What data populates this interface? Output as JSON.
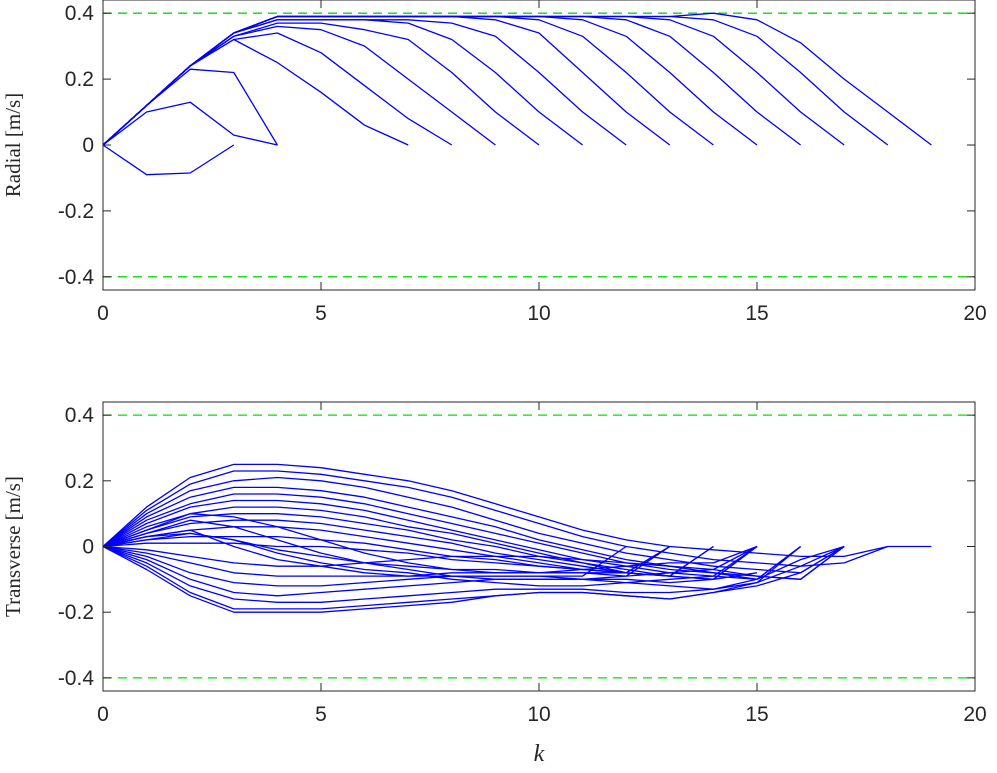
{
  "colors": {
    "series": "#0000ff",
    "limit": "#00e000",
    "axis": "#262626"
  },
  "chart_data": [
    {
      "type": "line",
      "ylabel": "Radial [m/s]",
      "xlabel": "",
      "xlim": [
        0,
        20
      ],
      "ylim": [
        -0.44,
        0.44
      ],
      "xticks": [
        "0",
        "5",
        "10",
        "15",
        "20"
      ],
      "yticks": [
        "-0.4",
        "-0.2",
        "0",
        "0.2",
        "0.4"
      ],
      "xtick_values": [
        0,
        5,
        10,
        15,
        20
      ],
      "ytick_values": [
        -0.4,
        -0.2,
        0,
        0.2,
        0.4
      ],
      "limits": [
        0.4,
        -0.4
      ],
      "grid": false,
      "series": [
        {
          "values": [
            0,
            -0.09,
            -0.085,
            0
          ]
        },
        {
          "values": [
            0,
            0.1,
            0.13,
            0.03,
            0
          ]
        },
        {
          "values": [
            0,
            0.12,
            0.23,
            0.22,
            0
          ]
        },
        {
          "values": [
            0,
            0.12,
            0.24,
            0.32,
            0.25,
            0.16,
            0.06,
            0
          ]
        },
        {
          "values": [
            0,
            0.12,
            0.24,
            0.32,
            0.34,
            0.28,
            0.18,
            0.08,
            0
          ]
        },
        {
          "values": [
            0,
            0.12,
            0.24,
            0.33,
            0.36,
            0.35,
            0.3,
            0.2,
            0.1,
            0
          ]
        },
        {
          "values": [
            0,
            0.12,
            0.24,
            0.33,
            0.37,
            0.37,
            0.35,
            0.32,
            0.22,
            0.1,
            0
          ]
        },
        {
          "values": [
            0,
            0.12,
            0.24,
            0.34,
            0.38,
            0.38,
            0.38,
            0.37,
            0.32,
            0.22,
            0.1,
            0
          ]
        },
        {
          "values": [
            0,
            0.12,
            0.24,
            0.34,
            0.38,
            0.38,
            0.38,
            0.38,
            0.37,
            0.33,
            0.22,
            0.1,
            0
          ]
        },
        {
          "values": [
            0,
            0.12,
            0.24,
            0.34,
            0.39,
            0.39,
            0.39,
            0.39,
            0.39,
            0.38,
            0.34,
            0.22,
            0.1,
            0
          ]
        },
        {
          "values": [
            0,
            0.12,
            0.24,
            0.34,
            0.39,
            0.39,
            0.39,
            0.39,
            0.39,
            0.39,
            0.38,
            0.33,
            0.22,
            0.1,
            0
          ]
        },
        {
          "values": [
            0,
            0.12,
            0.24,
            0.34,
            0.39,
            0.39,
            0.39,
            0.39,
            0.39,
            0.39,
            0.39,
            0.38,
            0.33,
            0.22,
            0.1,
            0
          ]
        },
        {
          "values": [
            0,
            0.12,
            0.24,
            0.34,
            0.39,
            0.39,
            0.39,
            0.39,
            0.39,
            0.39,
            0.39,
            0.39,
            0.38,
            0.33,
            0.22,
            0.1,
            0
          ]
        },
        {
          "values": [
            0,
            0.12,
            0.24,
            0.34,
            0.39,
            0.39,
            0.39,
            0.39,
            0.39,
            0.39,
            0.39,
            0.39,
            0.39,
            0.38,
            0.33,
            0.22,
            0.1,
            0
          ]
        },
        {
          "values": [
            0,
            0.12,
            0.24,
            0.34,
            0.39,
            0.39,
            0.39,
            0.39,
            0.39,
            0.39,
            0.39,
            0.39,
            0.39,
            0.39,
            0.38,
            0.33,
            0.22,
            0.1,
            0
          ]
        },
        {
          "values": [
            0,
            0.12,
            0.24,
            0.34,
            0.39,
            0.39,
            0.39,
            0.39,
            0.39,
            0.39,
            0.39,
            0.39,
            0.39,
            0.39,
            0.4,
            0.38,
            0.31,
            0.2,
            0.1,
            0
          ]
        }
      ]
    },
    {
      "type": "line",
      "ylabel": "Transverse [m/s]",
      "xlabel": "k",
      "xlim": [
        0,
        20
      ],
      "ylim": [
        -0.44,
        0.44
      ],
      "xticks": [
        "0",
        "5",
        "10",
        "15",
        "20"
      ],
      "yticks": [
        "-0.4",
        "-0.2",
        "0",
        "0.2",
        "0.4"
      ],
      "xtick_values": [
        0,
        5,
        10,
        15,
        20
      ],
      "ytick_values": [
        -0.4,
        -0.2,
        0,
        0.2,
        0.4
      ],
      "limits": [
        0.4,
        -0.4
      ],
      "grid": false,
      "series": [
        {
          "values": [
            0,
            0.12,
            0.21,
            0.25,
            0.25,
            0.24,
            0.22,
            0.2,
            0.17,
            0.13,
            0.09,
            0.05,
            0.02,
            0,
            -0.01,
            -0.02,
            -0.03,
            -0.03,
            0,
            0
          ]
        },
        {
          "values": [
            0,
            0.11,
            0.19,
            0.23,
            0.23,
            0.22,
            0.2,
            0.18,
            0.15,
            0.11,
            0.07,
            0.03,
            0,
            -0.02,
            -0.04,
            -0.05,
            -0.06,
            -0.05,
            0
          ]
        },
        {
          "values": [
            0,
            0.1,
            0.17,
            0.2,
            0.21,
            0.2,
            0.18,
            0.15,
            0.12,
            0.08,
            0.04,
            0.01,
            -0.02,
            -0.04,
            -0.06,
            -0.07,
            -0.08,
            0
          ]
        },
        {
          "values": [
            0,
            0.09,
            0.15,
            0.18,
            0.18,
            0.17,
            0.15,
            0.12,
            0.09,
            0.06,
            0.02,
            -0.01,
            -0.04,
            -0.06,
            -0.07,
            -0.09,
            -0.1,
            0
          ]
        },
        {
          "values": [
            0,
            0.08,
            0.13,
            0.16,
            0.16,
            0.15,
            0.13,
            0.1,
            0.07,
            0.04,
            0.01,
            -0.02,
            -0.05,
            -0.07,
            -0.08,
            -0.1,
            0
          ]
        },
        {
          "values": [
            0,
            0.07,
            0.12,
            0.14,
            0.14,
            0.13,
            0.11,
            0.08,
            0.05,
            0.02,
            -0.01,
            -0.04,
            -0.06,
            -0.08,
            -0.09,
            -0.1,
            0
          ]
        },
        {
          "values": [
            0,
            0.06,
            0.1,
            0.12,
            0.12,
            0.11,
            0.09,
            0.06,
            0.04,
            0.01,
            -0.02,
            -0.05,
            -0.07,
            -0.09,
            -0.1,
            0
          ]
        },
        {
          "values": [
            0,
            0.05,
            0.09,
            0.1,
            0.1,
            0.09,
            0.07,
            0.05,
            0.02,
            0,
            -0.03,
            -0.05,
            -0.08,
            -0.09,
            -0.1,
            0
          ]
        },
        {
          "values": [
            0,
            0.04,
            0.07,
            0.08,
            0.08,
            0.07,
            0.05,
            0.03,
            0.01,
            -0.02,
            -0.04,
            -0.06,
            -0.08,
            -0.09,
            0
          ]
        },
        {
          "values": [
            0,
            0.03,
            0.05,
            0.06,
            0.06,
            0.05,
            0.03,
            0.01,
            -0.01,
            -0.03,
            -0.05,
            -0.07,
            -0.08,
            -0.09,
            0
          ]
        },
        {
          "values": [
            0,
            0.02,
            0.03,
            0.03,
            0.03,
            0.02,
            0.01,
            -0.01,
            -0.03,
            -0.04,
            -0.06,
            -0.07,
            -0.08,
            0
          ]
        },
        {
          "values": [
            0,
            0.01,
            0.01,
            0.01,
            0,
            0,
            -0.01,
            -0.02,
            -0.04,
            -0.05,
            -0.06,
            -0.07,
            -0.08,
            0
          ]
        },
        {
          "values": [
            0,
            0.02,
            0.04,
            0.02,
            -0.01,
            -0.03,
            -0.05,
            -0.06,
            -0.07,
            -0.07,
            -0.08,
            -0.08,
            -0.09,
            0
          ]
        },
        {
          "values": [
            0,
            0.03,
            0.05,
            0,
            -0.04,
            -0.06,
            -0.08,
            -0.09,
            -0.09,
            -0.09,
            -0.09,
            -0.09,
            0
          ]
        },
        {
          "values": [
            0,
            -0.02,
            -0.05,
            -0.08,
            -0.09,
            -0.09,
            -0.09,
            -0.09,
            -0.08,
            -0.08,
            -0.08,
            -0.08,
            -0.08,
            0
          ]
        },
        {
          "values": [
            0,
            -0.03,
            -0.08,
            -0.11,
            -0.12,
            -0.12,
            -0.11,
            -0.1,
            -0.09,
            -0.09,
            -0.09,
            -0.1,
            -0.1,
            -0.11,
            -0.1,
            -0.08
          ]
        },
        {
          "values": [
            0,
            -0.04,
            -0.1,
            -0.14,
            -0.15,
            -0.14,
            -0.13,
            -0.12,
            -0.11,
            -0.1,
            -0.1,
            -0.1,
            -0.11,
            -0.12,
            -0.13,
            -0.1,
            -0.04,
            0
          ]
        },
        {
          "values": [
            0,
            -0.05,
            -0.12,
            -0.16,
            -0.17,
            -0.17,
            -0.16,
            -0.15,
            -0.14,
            -0.13,
            -0.13,
            -0.13,
            -0.14,
            -0.14,
            -0.13,
            -0.11,
            -0.06,
            0
          ]
        },
        {
          "values": [
            0,
            -0.06,
            -0.14,
            -0.19,
            -0.19,
            -0.19,
            -0.18,
            -0.17,
            -0.16,
            -0.15,
            -0.14,
            -0.14,
            -0.15,
            -0.16,
            -0.14,
            -0.12,
            -0.08,
            0
          ]
        },
        {
          "values": [
            0,
            -0.07,
            -0.15,
            -0.2,
            -0.2,
            -0.2,
            -0.19,
            -0.18,
            -0.17,
            -0.15,
            -0.14,
            -0.14,
            -0.15,
            -0.16,
            -0.14,
            -0.11,
            0
          ]
        },
        {
          "values": [
            0,
            0.05,
            0.1,
            0.09,
            0.06,
            0.02,
            -0.02,
            -0.05,
            -0.07,
            -0.08,
            -0.08,
            -0.07,
            -0.06,
            -0.05,
            -0.05,
            0
          ]
        },
        {
          "values": [
            0,
            0.04,
            0.08,
            0.06,
            0.02,
            -0.02,
            -0.05,
            -0.07,
            -0.09,
            -0.1,
            -0.1,
            -0.1,
            -0.09,
            -0.08,
            -0.07,
            0
          ]
        },
        {
          "values": [
            0,
            0.03,
            0.04,
            0.02,
            -0.02,
            -0.05,
            -0.07,
            -0.08,
            -0.1,
            -0.11,
            -0.12,
            -0.12,
            -0.11,
            -0.1,
            -0.09,
            0
          ]
        },
        {
          "values": [
            0,
            -0.01,
            -0.03,
            -0.05,
            -0.06,
            -0.06,
            -0.05,
            -0.04,
            -0.03,
            -0.03,
            -0.03,
            -0.04,
            -0.05,
            -0.06,
            -0.08,
            -0.09,
            -0.1,
            0
          ]
        }
      ]
    }
  ]
}
